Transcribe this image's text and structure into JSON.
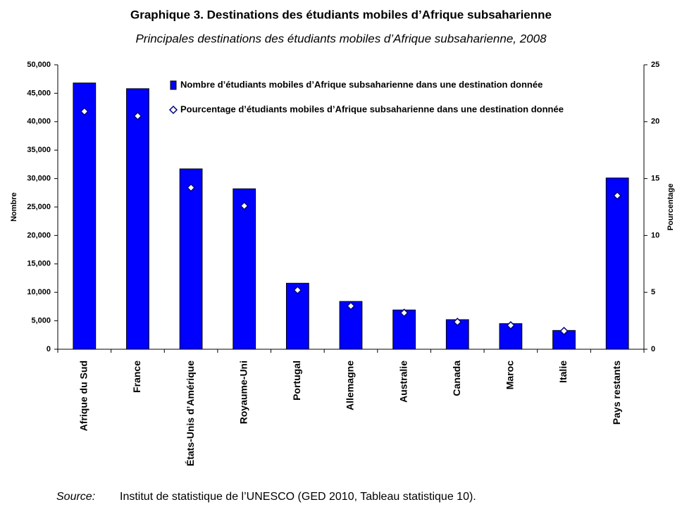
{
  "chart_data": {
    "type": "bar_with_markers",
    "title": "Graphique 3. Destinations des étudiants mobiles d’Afrique subsaharienne",
    "subtitle": "Principales destinations des étudiants mobiles d’Afrique subsaharienne, 2008",
    "y_label": "Nombre",
    "y2_label": "Pourcentage",
    "categories": [
      "Afrique du Sud",
      "France",
      "États-Unis d’Amérique",
      "Royaume-Uni",
      "Portugal",
      "Allemagne",
      "Australie",
      "Canada",
      "Maroc",
      "Italie",
      "Pays restants"
    ],
    "series": [
      {
        "name": "Nombre d’étudiants mobiles d’Afrique subsaharienne dans une destination donnée",
        "color": "#0000ff",
        "values": [
          46800,
          45800,
          31700,
          28200,
          11600,
          8400,
          6900,
          5200,
          4500,
          3300,
          30100
        ]
      },
      {
        "name": "Pourcentage d’étudiants mobiles d’Afrique subsaharienne dans une destination donnée",
        "color": "#ffffff",
        "axis": "y2",
        "values": [
          20.9,
          20.5,
          14.2,
          12.6,
          5.2,
          3.8,
          3.2,
          2.4,
          2.1,
          1.6,
          13.5
        ]
      }
    ],
    "ylim": [
      0,
      50000
    ],
    "yticks": [
      0,
      {
        "value": 5000,
        "label": "5,000"
      },
      {
        "value": 10000,
        "label": "10,000"
      },
      {
        "value": 15000,
        "label": "15,000"
      },
      {
        "value": 20000,
        "label": "20,000"
      },
      {
        "value": 25000,
        "label": "25,000"
      },
      {
        "value": 30000,
        "label": "30,000"
      },
      {
        "value": 35000,
        "label": "35,000"
      },
      {
        "value": 40000,
        "label": "40,000"
      },
      {
        "value": 45000,
        "label": "45,000"
      },
      {
        "value": 50000,
        "label": "50,000"
      }
    ],
    "y2lim": [
      0,
      25
    ],
    "y2ticks": [
      0,
      5,
      10,
      15,
      20,
      25
    ],
    "grid": false,
    "legend": "top",
    "source_label": "Source:",
    "source": "Institut de statistique de l’UNESCO (GED 2010, Tableau statistique 10)."
  }
}
